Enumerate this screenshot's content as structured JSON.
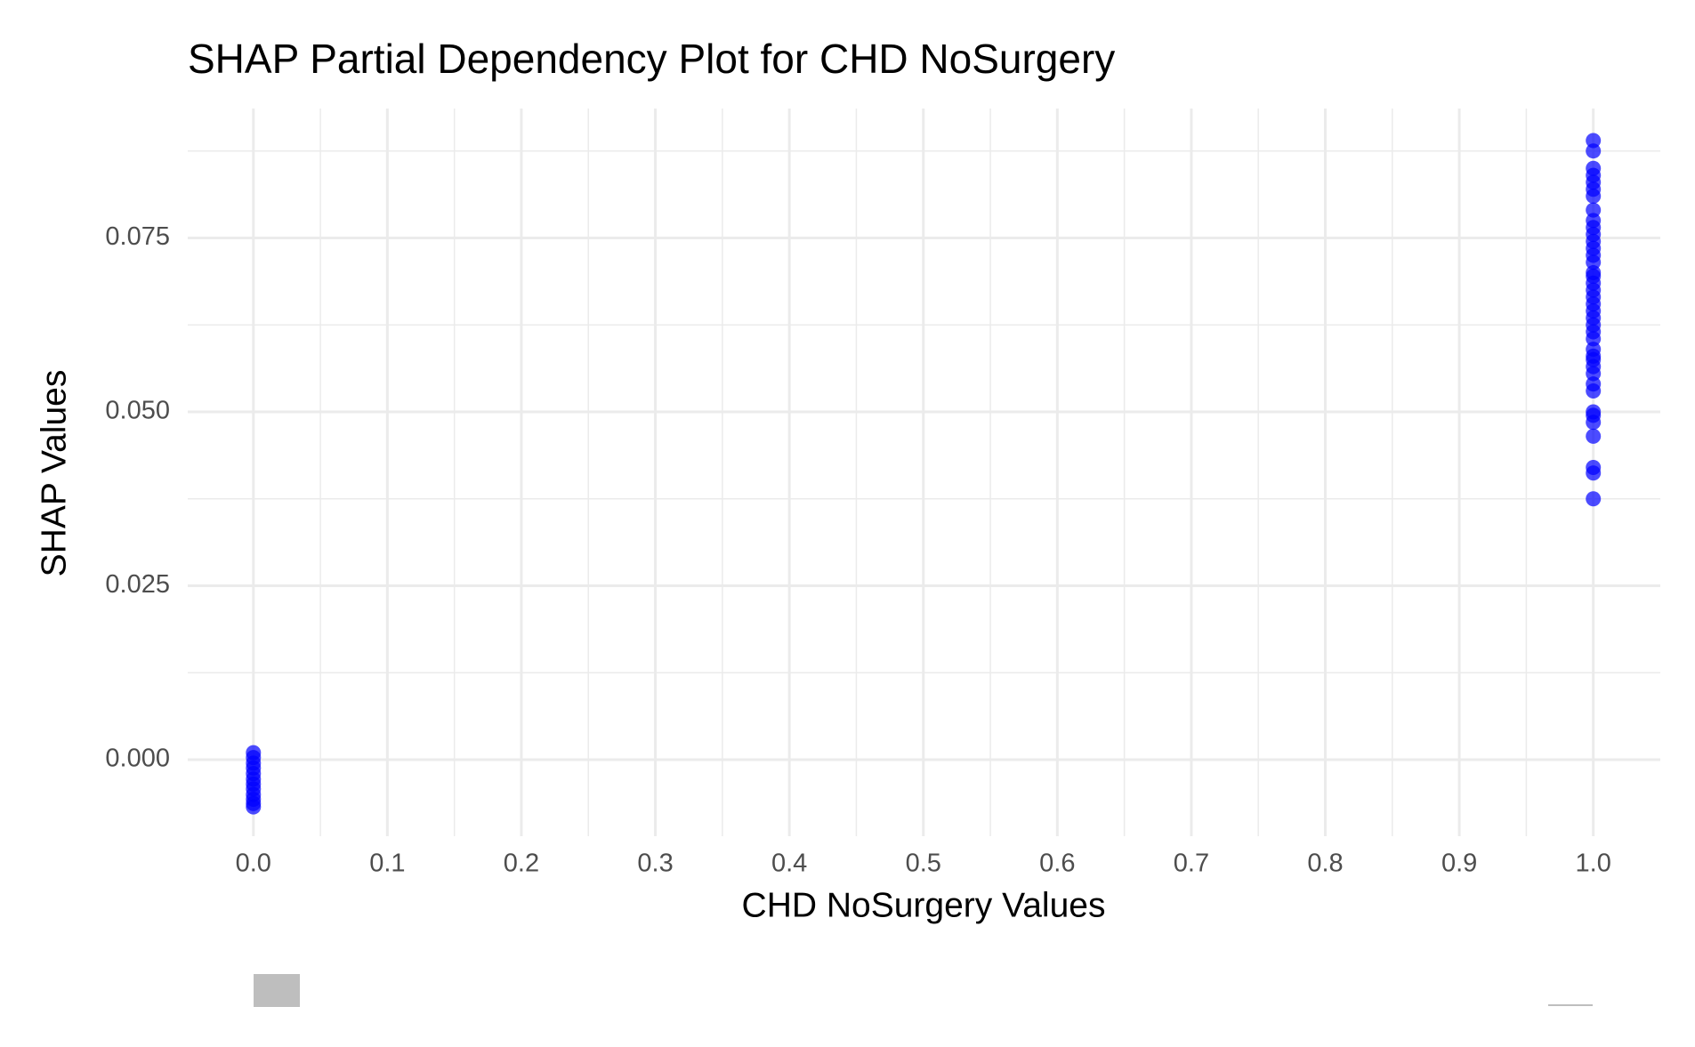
{
  "chart_data": {
    "type": "scatter",
    "title": "SHAP Partial Dependency Plot for CHD NoSurgery",
    "x_label": "CHD NoSurgery Values",
    "y_label": "SHAP Values",
    "xlim": [
      -0.049,
      1.05
    ],
    "ylim": [
      -0.011,
      0.0936
    ],
    "xticks": [
      {
        "value": 0,
        "label": "0.0"
      },
      0.1,
      0.2,
      0.3,
      0.4,
      0.5,
      0.6,
      0.7,
      0.8,
      0.9,
      {
        "value": 1,
        "label": "1.0"
      }
    ],
    "yticks": [
      {
        "value": 0,
        "label": "0.000"
      },
      0.025,
      {
        "value": 0.05,
        "label": "0.050"
      },
      0.075
    ],
    "grid": true,
    "minor_grid": true,
    "series": [
      {
        "color": "#0000ff",
        "x": [
          0,
          0,
          0,
          0,
          0,
          0,
          0,
          0,
          0,
          0,
          0,
          0,
          1,
          1,
          1,
          1,
          1,
          1,
          1,
          1,
          1,
          1,
          1,
          1,
          1,
          1,
          1,
          1,
          1,
          1,
          1,
          1,
          1,
          1,
          1,
          1,
          1,
          1,
          1,
          1,
          1,
          1,
          1,
          1,
          1,
          1,
          1,
          1,
          1,
          1,
          1,
          1
        ],
        "y": [
          0.001,
          0.0003,
          -0.0005,
          -0.0012,
          -0.002,
          -0.0028,
          -0.0035,
          -0.0042,
          -0.005,
          -0.0057,
          -0.0063,
          -0.0068,
          0.0375,
          0.0412,
          0.042,
          0.0465,
          0.0485,
          0.0495,
          0.05,
          0.053,
          0.054,
          0.0555,
          0.0565,
          0.0575,
          0.058,
          0.059,
          0.0605,
          0.0615,
          0.0625,
          0.0635,
          0.0645,
          0.0655,
          0.0665,
          0.0675,
          0.0685,
          0.0695,
          0.07,
          0.0715,
          0.0725,
          0.0735,
          0.0745,
          0.0755,
          0.0765,
          0.0775,
          0.079,
          0.081,
          0.082,
          0.083,
          0.084,
          0.085,
          0.0875,
          0.089
        ]
      }
    ]
  }
}
